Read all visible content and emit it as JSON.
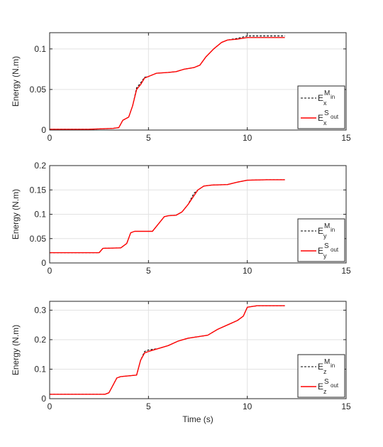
{
  "chart_data": [
    {
      "type": "line",
      "ylabel": "Energy (N.m)",
      "xlabel": "",
      "xlim": [
        0,
        15
      ],
      "ylim": [
        0,
        0.12
      ],
      "xticks": [
        0,
        5,
        10,
        15
      ],
      "yticks": [
        0,
        0.05,
        0.1
      ],
      "ytick_labels": [
        "0",
        "0.05",
        "0.1"
      ],
      "grid": true,
      "legend_position": "bottom-right",
      "legend": [
        {
          "base": "E",
          "sub": "x",
          "sup": "M",
          "supsub": "in",
          "style": "dashed",
          "color": "#000000"
        },
        {
          "base": "E",
          "sub": "x",
          "sup": "S",
          "supsub": "out",
          "style": "solid",
          "color": "#ff0000"
        }
      ],
      "series": [
        {
          "color": "#000000",
          "dash": true,
          "points": [
            [
              0,
              0.001
            ],
            [
              2,
              0.001
            ],
            [
              3.2,
              0.002
            ],
            [
              3.5,
              0.003
            ],
            [
              3.7,
              0.012
            ],
            [
              4.0,
              0.016
            ],
            [
              4.2,
              0.03
            ],
            [
              4.4,
              0.052
            ],
            [
              4.6,
              0.058
            ],
            [
              4.8,
              0.065
            ],
            [
              5.0,
              0.066
            ],
            [
              5.4,
              0.07
            ],
            [
              6.0,
              0.071
            ],
            [
              6.4,
              0.072
            ],
            [
              6.8,
              0.075
            ],
            [
              7.3,
              0.077
            ],
            [
              7.6,
              0.08
            ],
            [
              7.9,
              0.09
            ],
            [
              8.3,
              0.1
            ],
            [
              8.7,
              0.108
            ],
            [
              9.0,
              0.111
            ],
            [
              9.5,
              0.113
            ],
            [
              10.0,
              0.116
            ],
            [
              10.5,
              0.116
            ],
            [
              11.9,
              0.116
            ]
          ]
        },
        {
          "color": "#ff0000",
          "dash": false,
          "points": [
            [
              0,
              0.001
            ],
            [
              2,
              0.001
            ],
            [
              3.2,
              0.002
            ],
            [
              3.5,
              0.003
            ],
            [
              3.7,
              0.012
            ],
            [
              4.0,
              0.016
            ],
            [
              4.2,
              0.03
            ],
            [
              4.4,
              0.05
            ],
            [
              4.6,
              0.056
            ],
            [
              4.8,
              0.064
            ],
            [
              5.0,
              0.066
            ],
            [
              5.4,
              0.07
            ],
            [
              6.0,
              0.071
            ],
            [
              6.4,
              0.072
            ],
            [
              6.8,
              0.075
            ],
            [
              7.3,
              0.077
            ],
            [
              7.6,
              0.08
            ],
            [
              7.9,
              0.09
            ],
            [
              8.3,
              0.1
            ],
            [
              8.7,
              0.108
            ],
            [
              9.0,
              0.111
            ],
            [
              9.5,
              0.112
            ],
            [
              10.0,
              0.114
            ],
            [
              10.5,
              0.114
            ],
            [
              11.9,
              0.114
            ]
          ]
        }
      ]
    },
    {
      "type": "line",
      "ylabel": "Energy (N.m)",
      "xlabel": "",
      "xlim": [
        0,
        15
      ],
      "ylim": [
        0,
        0.2
      ],
      "xticks": [
        0,
        5,
        10,
        15
      ],
      "yticks": [
        0,
        0.05,
        0.1,
        0.15,
        0.2
      ],
      "ytick_labels": [
        "0",
        "0.05",
        "0.1",
        "0.15",
        "0.2"
      ],
      "grid": true,
      "legend_position": "bottom-right",
      "legend": [
        {
          "base": "E",
          "sub": "y",
          "sup": "M",
          "supsub": "in",
          "style": "dashed",
          "color": "#000000"
        },
        {
          "base": "E",
          "sub": "y",
          "sup": "S",
          "supsub": "out",
          "style": "solid",
          "color": "#ff0000"
        }
      ],
      "series": [
        {
          "color": "#000000",
          "dash": true,
          "points": [
            [
              0,
              0.021
            ],
            [
              2.5,
              0.021
            ],
            [
              2.7,
              0.03
            ],
            [
              3.6,
              0.031
            ],
            [
              3.9,
              0.04
            ],
            [
              4.1,
              0.062
            ],
            [
              4.3,
              0.065
            ],
            [
              5.2,
              0.065
            ],
            [
              5.5,
              0.08
            ],
            [
              5.8,
              0.095
            ],
            [
              6.0,
              0.097
            ],
            [
              6.4,
              0.098
            ],
            [
              6.7,
              0.105
            ],
            [
              7.0,
              0.12
            ],
            [
              7.3,
              0.143
            ],
            [
              7.5,
              0.15
            ],
            [
              7.8,
              0.158
            ],
            [
              8.2,
              0.16
            ],
            [
              9.0,
              0.161
            ],
            [
              9.5,
              0.166
            ],
            [
              10.0,
              0.17
            ],
            [
              11.0,
              0.171
            ],
            [
              11.9,
              0.171
            ]
          ]
        },
        {
          "color": "#ff0000",
          "dash": false,
          "points": [
            [
              0,
              0.021
            ],
            [
              2.5,
              0.021
            ],
            [
              2.7,
              0.03
            ],
            [
              3.6,
              0.031
            ],
            [
              3.9,
              0.04
            ],
            [
              4.1,
              0.062
            ],
            [
              4.3,
              0.065
            ],
            [
              5.2,
              0.065
            ],
            [
              5.5,
              0.08
            ],
            [
              5.8,
              0.095
            ],
            [
              6.0,
              0.097
            ],
            [
              6.4,
              0.098
            ],
            [
              6.7,
              0.105
            ],
            [
              7.0,
              0.12
            ],
            [
              7.3,
              0.138
            ],
            [
              7.5,
              0.15
            ],
            [
              7.8,
              0.158
            ],
            [
              8.2,
              0.16
            ],
            [
              9.0,
              0.161
            ],
            [
              9.5,
              0.166
            ],
            [
              10.0,
              0.17
            ],
            [
              11.0,
              0.171
            ],
            [
              11.9,
              0.171
            ]
          ]
        }
      ]
    },
    {
      "type": "line",
      "ylabel": "Energy (N.m)",
      "xlabel": "Time (s)",
      "xlim": [
        0,
        15
      ],
      "ylim": [
        0,
        0.33
      ],
      "xticks": [
        0,
        5,
        10,
        15
      ],
      "yticks": [
        0,
        0.1,
        0.2,
        0.3
      ],
      "ytick_labels": [
        "0",
        "0.1",
        "0.2",
        "0.3"
      ],
      "grid": true,
      "legend_position": "bottom-right",
      "legend": [
        {
          "base": "E",
          "sub": "z",
          "sup": "M",
          "supsub": "in",
          "style": "dashed",
          "color": "#000000"
        },
        {
          "base": "E",
          "sub": "z",
          "sup": "S",
          "supsub": "out",
          "style": "solid",
          "color": "#ff0000"
        }
      ],
      "series": [
        {
          "color": "#000000",
          "dash": true,
          "points": [
            [
              0,
              0.015
            ],
            [
              2.0,
              0.015
            ],
            [
              2.8,
              0.015
            ],
            [
              3.0,
              0.02
            ],
            [
              3.2,
              0.045
            ],
            [
              3.4,
              0.07
            ],
            [
              3.6,
              0.075
            ],
            [
              4.4,
              0.08
            ],
            [
              4.6,
              0.13
            ],
            [
              4.8,
              0.16
            ],
            [
              5.0,
              0.165
            ],
            [
              5.5,
              0.17
            ],
            [
              6.0,
              0.18
            ],
            [
              6.5,
              0.195
            ],
            [
              7.0,
              0.205
            ],
            [
              7.5,
              0.21
            ],
            [
              8.0,
              0.215
            ],
            [
              8.5,
              0.235
            ],
            [
              9.0,
              0.25
            ],
            [
              9.5,
              0.265
            ],
            [
              9.8,
              0.28
            ],
            [
              10.0,
              0.31
            ],
            [
              10.5,
              0.315
            ],
            [
              11.9,
              0.315
            ]
          ]
        },
        {
          "color": "#ff0000",
          "dash": false,
          "points": [
            [
              0,
              0.015
            ],
            [
              2.0,
              0.015
            ],
            [
              2.8,
              0.015
            ],
            [
              3.0,
              0.02
            ],
            [
              3.2,
              0.045
            ],
            [
              3.4,
              0.07
            ],
            [
              3.6,
              0.075
            ],
            [
              4.4,
              0.08
            ],
            [
              4.6,
              0.13
            ],
            [
              4.8,
              0.155
            ],
            [
              5.0,
              0.16
            ],
            [
              5.5,
              0.17
            ],
            [
              6.0,
              0.18
            ],
            [
              6.5,
              0.195
            ],
            [
              7.0,
              0.205
            ],
            [
              7.5,
              0.21
            ],
            [
              8.0,
              0.215
            ],
            [
              8.5,
              0.235
            ],
            [
              9.0,
              0.25
            ],
            [
              9.5,
              0.265
            ],
            [
              9.8,
              0.28
            ],
            [
              10.0,
              0.31
            ],
            [
              10.5,
              0.315
            ],
            [
              11.9,
              0.315
            ]
          ]
        }
      ]
    }
  ]
}
